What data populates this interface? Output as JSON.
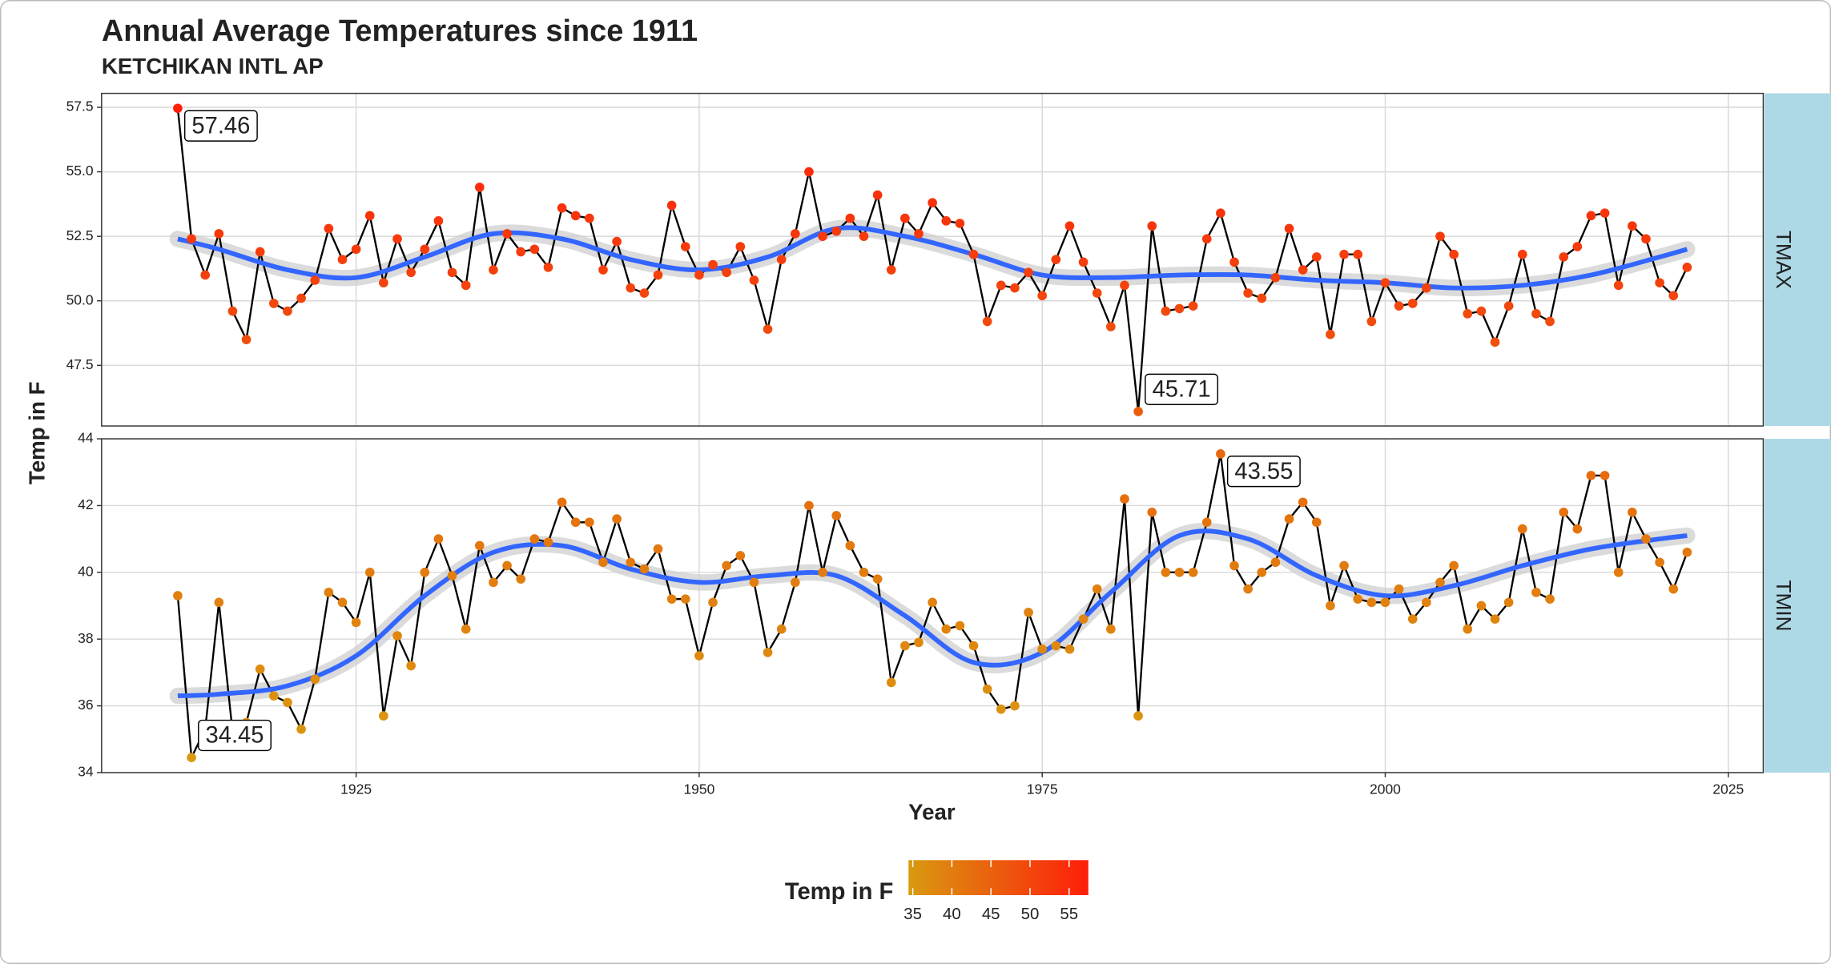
{
  "chart_data": {
    "type": "line",
    "title": "Annual Average Temperatures since 1911",
    "subtitle": "KETCHIKAN INTL AP",
    "x_label": "Year",
    "y_label": "Temp in F",
    "x": [
      1912,
      1913,
      1914,
      1915,
      1916,
      1917,
      1918,
      1919,
      1920,
      1921,
      1922,
      1923,
      1924,
      1925,
      1926,
      1927,
      1928,
      1929,
      1930,
      1931,
      1932,
      1933,
      1934,
      1935,
      1936,
      1937,
      1938,
      1939,
      1940,
      1941,
      1942,
      1943,
      1944,
      1945,
      1946,
      1947,
      1948,
      1949,
      1950,
      1951,
      1952,
      1953,
      1954,
      1955,
      1956,
      1957,
      1958,
      1959,
      1960,
      1961,
      1962,
      1963,
      1964,
      1965,
      1966,
      1967,
      1968,
      1969,
      1970,
      1971,
      1972,
      1973,
      1974,
      1975,
      1976,
      1977,
      1978,
      1979,
      1980,
      1981,
      1982,
      1983,
      1984,
      1985,
      1986,
      1987,
      1988,
      1989,
      1990,
      1991,
      1992,
      1993,
      1994,
      1995,
      1996,
      1997,
      1998,
      1999,
      2000,
      2001,
      2002,
      2003,
      2004,
      2005,
      2006,
      2007,
      2008,
      2009,
      2010,
      2011,
      2012,
      2013,
      2014,
      2015,
      2016,
      2017,
      2018,
      2019,
      2020,
      2021,
      2022
    ],
    "xlim": [
      1906.45,
      2027.55
    ],
    "xticks": [
      1925,
      1950,
      1975,
      2000,
      2025
    ],
    "grid": true,
    "line_color": "#000000",
    "smooth": {
      "color": "#3366ff",
      "band_color": "#cccccc",
      "x": [
        1912,
        1915,
        1920,
        1925,
        1930,
        1935,
        1940,
        1945,
        1950,
        1955,
        1960,
        1965,
        1970,
        1975,
        1980,
        1985,
        1990,
        1995,
        2000,
        2005,
        2010,
        2015,
        2020,
        2022
      ]
    },
    "panels": [
      {
        "name": "TMAX",
        "ylim": [
          45.15,
          58.04
        ],
        "yticks": [
          47.5,
          {
            "value": 50,
            "label": "50.0"
          },
          52.5,
          {
            "value": 55,
            "label": "55.0"
          },
          57.5
        ],
        "values": [
          57.46,
          52.4,
          51.0,
          52.6,
          49.6,
          48.5,
          51.9,
          49.9,
          49.6,
          50.1,
          50.8,
          52.8,
          51.6,
          52.0,
          53.3,
          50.7,
          52.4,
          51.1,
          52.0,
          53.1,
          51.1,
          50.6,
          54.4,
          51.2,
          52.6,
          51.9,
          52.0,
          51.3,
          53.6,
          53.3,
          53.2,
          51.2,
          52.3,
          50.5,
          50.3,
          51.0,
          53.7,
          52.1,
          51.0,
          51.4,
          51.1,
          52.1,
          50.8,
          48.9,
          51.6,
          52.6,
          55.0,
          52.5,
          52.7,
          53.2,
          52.5,
          54.1,
          51.2,
          53.2,
          52.6,
          53.8,
          53.1,
          53.0,
          51.8,
          49.2,
          50.6,
          50.5,
          51.1,
          50.2,
          51.6,
          52.9,
          51.5,
          50.3,
          49.0,
          50.6,
          45.71,
          52.9,
          49.6,
          49.7,
          49.8,
          52.4,
          53.4,
          51.5,
          50.3,
          50.1,
          50.9,
          52.8,
          51.2,
          51.7,
          48.7,
          51.8,
          51.8,
          49.2,
          50.7,
          49.8,
          49.9,
          50.5,
          52.5,
          51.8,
          49.5,
          49.6,
          48.4,
          49.8,
          51.8,
          49.5,
          49.2,
          51.7,
          52.1,
          53.3,
          53.4,
          50.6,
          52.9,
          52.4,
          50.7,
          50.2,
          51.3
        ],
        "smooth": [
          52.4,
          52.0,
          51.2,
          50.9,
          51.7,
          52.6,
          52.4,
          51.6,
          51.2,
          51.7,
          52.8,
          52.5,
          51.8,
          51.0,
          50.9,
          51.0,
          51.0,
          50.8,
          50.7,
          50.5,
          50.6,
          51.0,
          51.7,
          52.0
        ]
      },
      {
        "name": "TMIN",
        "ylim": [
          34,
          44
        ],
        "yticks": [
          34,
          36,
          38,
          40,
          42,
          44
        ],
        "values": [
          39.3,
          34.45,
          35.3,
          39.1,
          35.2,
          35.5,
          37.1,
          36.3,
          36.1,
          35.3,
          36.8,
          39.4,
          39.1,
          38.5,
          40.0,
          35.7,
          38.1,
          37.2,
          40.0,
          41.0,
          39.9,
          38.3,
          40.8,
          39.7,
          40.2,
          39.8,
          41.0,
          40.9,
          42.1,
          41.5,
          41.5,
          40.3,
          41.6,
          40.3,
          40.1,
          40.7,
          39.2,
          39.2,
          37.5,
          39.1,
          40.2,
          40.5,
          39.7,
          37.6,
          38.3,
          39.7,
          42.0,
          40.0,
          41.7,
          40.8,
          40.0,
          39.8,
          36.7,
          37.8,
          37.9,
          39.1,
          38.3,
          38.4,
          37.8,
          36.5,
          35.9,
          36.0,
          38.8,
          37.7,
          37.8,
          37.7,
          38.6,
          39.5,
          38.3,
          42.2,
          35.7,
          41.8,
          40.0,
          40.0,
          40.0,
          41.5,
          43.55,
          40.2,
          39.5,
          40.0,
          40.3,
          41.6,
          42.1,
          41.5,
          39.0,
          40.2,
          39.2,
          39.1,
          39.1,
          39.5,
          38.6,
          39.1,
          39.7,
          40.2,
          38.3,
          39.0,
          38.6,
          39.1,
          41.3,
          39.4,
          39.2,
          41.8,
          41.3,
          42.9,
          42.9,
          40.0,
          41.8,
          41.0,
          40.3,
          39.5,
          40.6
        ],
        "smooth": [
          36.3,
          36.35,
          36.6,
          37.5,
          39.3,
          40.6,
          40.8,
          40.1,
          39.7,
          39.9,
          39.9,
          38.7,
          37.3,
          37.6,
          39.4,
          41.1,
          41.0,
          39.9,
          39.3,
          39.6,
          40.2,
          40.7,
          41.0,
          41.1
        ]
      }
    ],
    "colorbar": {
      "title": "Temp in F",
      "limits": [
        34.45,
        57.46
      ],
      "ticks": [
        35,
        40,
        45,
        50,
        55
      ],
      "colors": [
        "#d99a10",
        "#ff1e0a"
      ]
    }
  }
}
